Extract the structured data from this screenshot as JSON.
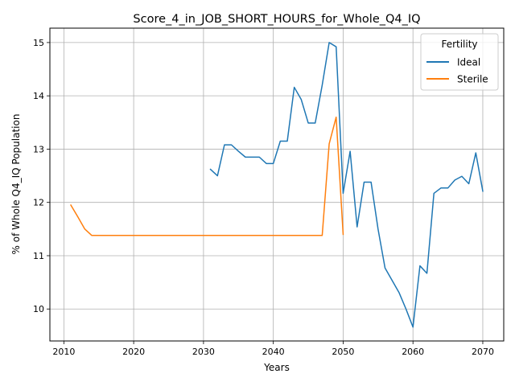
{
  "chart_data": {
    "type": "line",
    "title": "Score_4_in_JOB_SHORT_HOURS_for_Whole_Q4_IQ",
    "xlabel": "Years",
    "ylabel": "% of Whole Q4_IQ Population",
    "xlim": [
      2008,
      2073
    ],
    "ylim": [
      9.4,
      15.27
    ],
    "xticks": [
      2010,
      2020,
      2030,
      2040,
      2050,
      2060,
      2070
    ],
    "yticks": [
      10,
      11,
      12,
      13,
      14,
      15
    ],
    "grid": true,
    "legend": {
      "title": "Fertility",
      "position": "top-right"
    },
    "series": [
      {
        "name": "Ideal",
        "color": "#1f77b4",
        "x": [
          2031,
          2032,
          2033,
          2034,
          2035,
          2036,
          2037,
          2038,
          2039,
          2040,
          2041,
          2042,
          2043,
          2044,
          2045,
          2046,
          2047,
          2048,
          2049,
          2050,
          2051,
          2052,
          2053,
          2054,
          2055,
          2056,
          2057,
          2058,
          2059,
          2060,
          2061,
          2062,
          2063,
          2064,
          2065,
          2066,
          2067,
          2068,
          2069,
          2070
        ],
        "y": [
          12.62,
          12.5,
          13.08,
          13.08,
          12.96,
          12.85,
          12.85,
          12.85,
          12.73,
          12.73,
          13.15,
          13.15,
          14.16,
          13.93,
          13.49,
          13.49,
          14.2,
          15.0,
          14.92,
          12.17,
          12.96,
          11.54,
          12.38,
          12.38,
          11.5,
          10.77,
          10.54,
          10.31,
          10.0,
          9.66,
          10.81,
          10.67,
          12.17,
          12.27,
          12.27,
          12.42,
          12.49,
          12.35,
          12.93,
          12.21
        ]
      },
      {
        "name": "Sterile",
        "color": "#ff7f0e",
        "x": [
          2011,
          2012,
          2013,
          2014,
          2015,
          2016,
          2017,
          2018,
          2019,
          2020,
          2021,
          2022,
          2023,
          2024,
          2025,
          2026,
          2027,
          2028,
          2029,
          2030,
          2031,
          2032,
          2033,
          2034,
          2035,
          2036,
          2037,
          2038,
          2039,
          2040,
          2041,
          2042,
          2043,
          2044,
          2045,
          2046,
          2047,
          2048,
          2049,
          2050
        ],
        "y": [
          11.95,
          11.73,
          11.5,
          11.38,
          11.38,
          11.38,
          11.38,
          11.38,
          11.38,
          11.38,
          11.38,
          11.38,
          11.38,
          11.38,
          11.38,
          11.38,
          11.38,
          11.38,
          11.38,
          11.38,
          11.38,
          11.38,
          11.38,
          11.38,
          11.38,
          11.38,
          11.38,
          11.38,
          11.38,
          11.38,
          11.38,
          11.38,
          11.38,
          11.38,
          11.38,
          11.38,
          11.38,
          13.1,
          13.6,
          11.4
        ]
      }
    ]
  }
}
